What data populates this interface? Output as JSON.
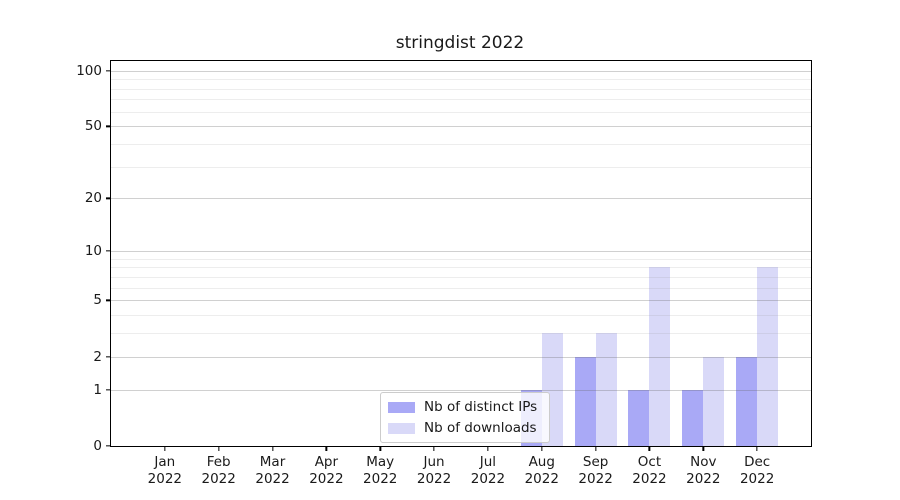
{
  "title": "stringdist 2022",
  "chart_data": {
    "type": "bar",
    "title": "stringdist 2022",
    "yscale": "log1p",
    "xlabel": "",
    "ylabel": "",
    "grid": true,
    "legend_position": "lower-center-left-inside",
    "categories": [
      "Jan 2022",
      "Feb 2022",
      "Mar 2022",
      "Apr 2022",
      "May 2022",
      "Jun 2022",
      "Jul 2022",
      "Aug 2022",
      "Sep 2022",
      "Oct 2022",
      "Nov 2022",
      "Dec 2022"
    ],
    "series": [
      {
        "name": "Nb of distinct IPs",
        "color": "#a9a9f6",
        "values": [
          0,
          0,
          0,
          0,
          0,
          0,
          0,
          1,
          2,
          1,
          1,
          2
        ]
      },
      {
        "name": "Nb of downloads",
        "color": "#d9d9f8",
        "values": [
          0,
          0,
          0,
          0,
          0,
          0,
          0,
          3,
          3,
          8,
          2,
          8
        ]
      }
    ],
    "y_ticks": [
      0,
      1,
      2,
      5,
      10,
      20,
      50,
      100
    ],
    "y_minor_gridlines": [
      3,
      4,
      6,
      7,
      8,
      9,
      30,
      40,
      60,
      70,
      80,
      90
    ],
    "ylim": [
      0,
      113
    ]
  },
  "colors": {
    "background": "#ffffff",
    "axis": "#000000",
    "major_grid": "#d0d0d0",
    "minor_grid": "#ececec",
    "bar_distinct_ips": "#a9a9f6",
    "bar_downloads": "#d9d9f8"
  }
}
